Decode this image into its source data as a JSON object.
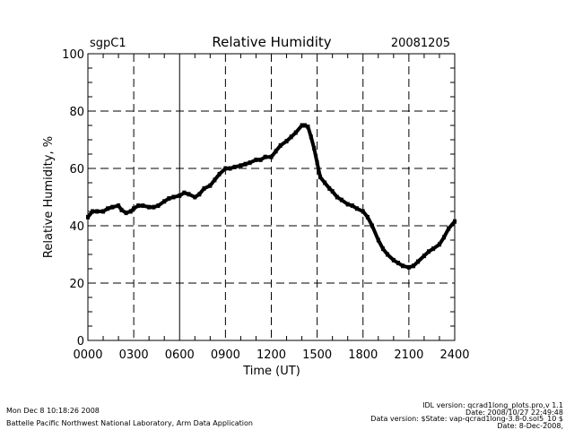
{
  "chart_data": {
    "type": "line",
    "title": "Relative Humidity",
    "site_label": "sgpC1",
    "date_label": "20081205",
    "xlabel": "Time (UT)",
    "ylabel": "Relative Humidity, %",
    "xlim": [
      0,
      24
    ],
    "ylim": [
      0,
      100
    ],
    "grid": true,
    "x_ticks": [
      0,
      3,
      6,
      9,
      12,
      15,
      18,
      21,
      24
    ],
    "x_tick_labels": [
      "0000",
      "0300",
      "0600",
      "0900",
      "1200",
      "1500",
      "1800",
      "2100",
      "2400"
    ],
    "y_ticks": [
      0,
      20,
      40,
      60,
      80,
      100
    ],
    "y_tick_labels": [
      "0",
      "20",
      "40",
      "60",
      "80",
      "100"
    ],
    "series": [
      {
        "name": "Relative Humidity",
        "color": "#000000",
        "x": [
          0,
          0.3,
          0.6,
          1,
          1.3,
          1.6,
          2,
          2.2,
          2.5,
          2.8,
          3,
          3.3,
          3.6,
          4,
          4.3,
          4.6,
          5,
          5.3,
          5.6,
          6,
          6.3,
          6.6,
          7,
          7.3,
          7.6,
          8,
          8.3,
          8.6,
          9,
          9.3,
          9.6,
          10,
          10.3,
          10.6,
          11,
          11.3,
          11.6,
          12,
          12.3,
          12.6,
          13,
          13.3,
          13.6,
          14,
          14.2,
          14.4,
          14.6,
          14.8,
          15,
          15.2,
          15.5,
          15.8,
          16,
          16.3,
          16.6,
          17,
          17.3,
          17.6,
          18,
          18.3,
          18.6,
          19,
          19.3,
          19.6,
          20,
          20.3,
          20.6,
          21,
          21.3,
          21.6,
          22,
          22.3,
          22.6,
          23,
          23.3,
          23.6,
          24
        ],
        "values": [
          43,
          45,
          45,
          45,
          46,
          46.5,
          47,
          45.5,
          44.5,
          45,
          46,
          47,
          47,
          46.5,
          46.5,
          47,
          48.5,
          49.5,
          50,
          50.5,
          51.5,
          51,
          50,
          51,
          53,
          54,
          56,
          58,
          60,
          60,
          60.5,
          61,
          61.5,
          62,
          63,
          63,
          64,
          64,
          66,
          68,
          69.5,
          71,
          72.5,
          75,
          75,
          74.5,
          71,
          67,
          62,
          57,
          55,
          53,
          52,
          50,
          49,
          47.5,
          47,
          46,
          45,
          43,
          40,
          35,
          32,
          30,
          28,
          27,
          26,
          25.5,
          26,
          27.5,
          29.5,
          31,
          32,
          33.5,
          36,
          39,
          41.5
        ]
      }
    ]
  },
  "footer": {
    "timestamp": "Mon Dec  8 10:18:26 2008",
    "organization": "Battelle Pacific Northwest National Laboratory, Arm Data Application",
    "idl_version": "IDL version: qcrad1long_plots.pro,v 1.1",
    "idl_date": "Date: 2008/10/27 22:49:48",
    "data_version": "Data version: $State: vap-qcrad1long-3.8-0.sol5_10 $",
    "data_date": "Date: 8-Dec-2008,"
  }
}
